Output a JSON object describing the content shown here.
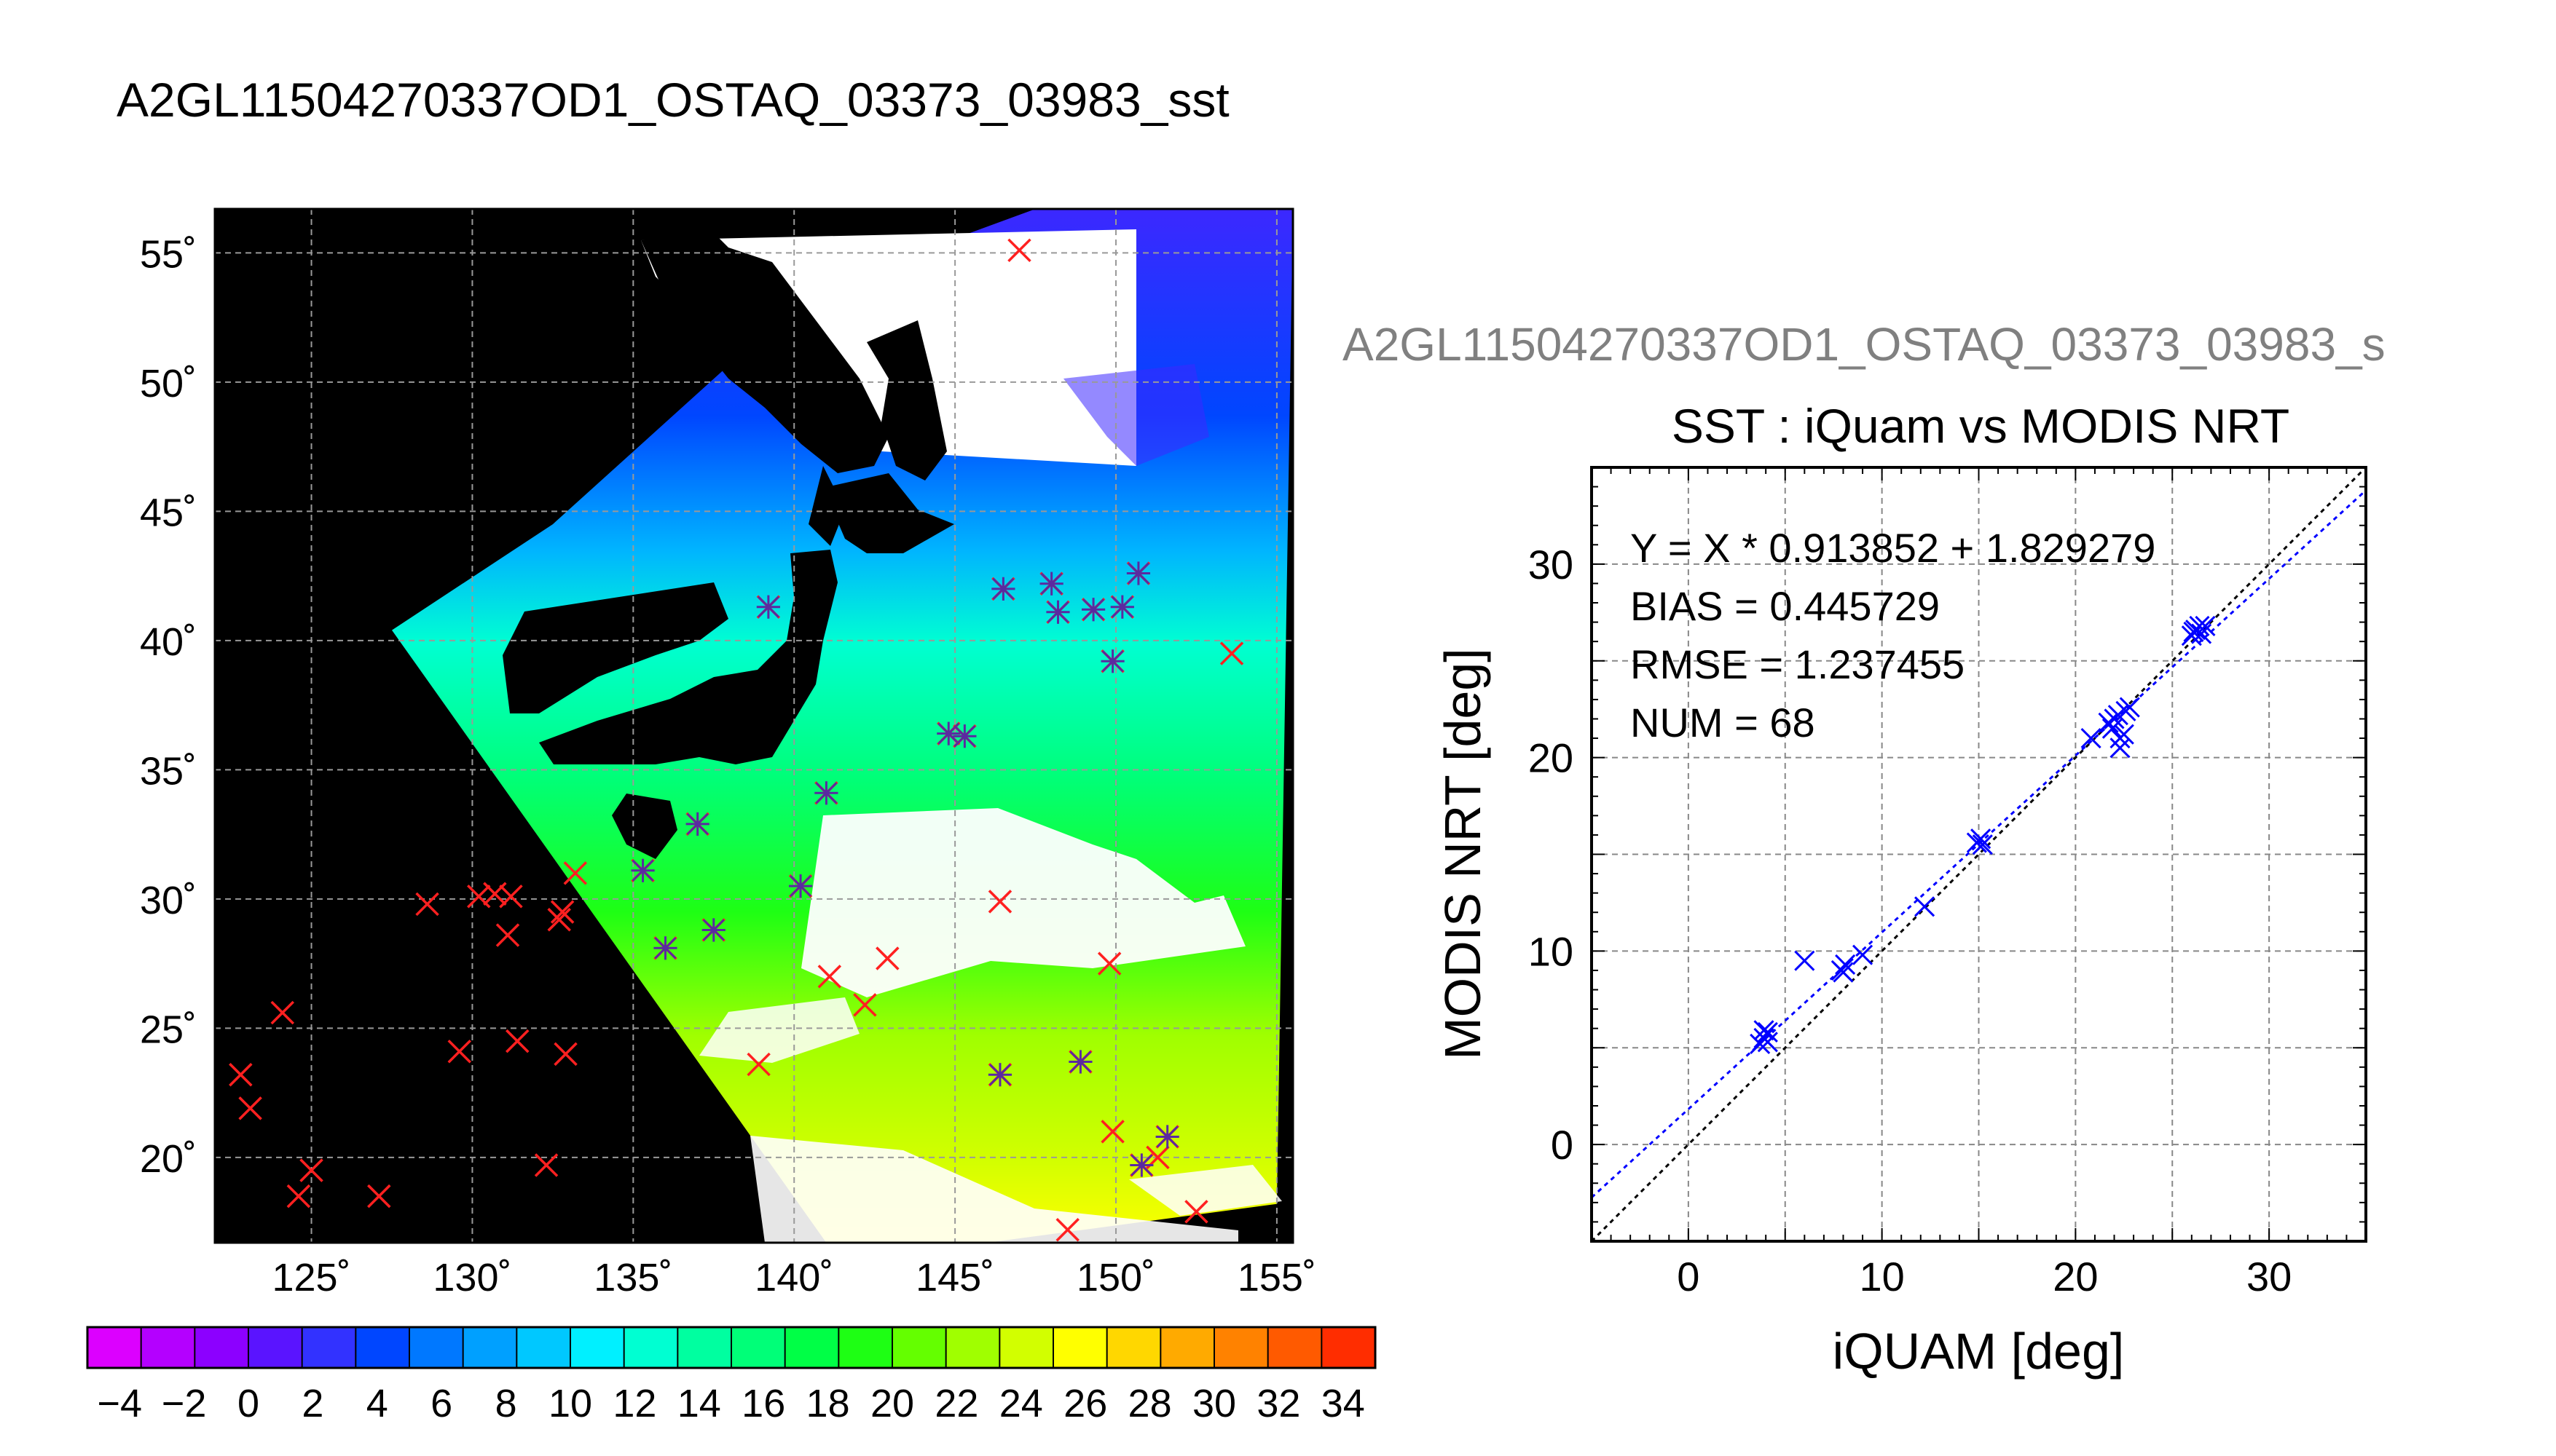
{
  "main_title": "A2GL11504270337OD1_OSTAQ_03373_03983_sst",
  "map": {
    "lon_ticks": [
      "125˚",
      "130˚",
      "135˚",
      "140˚",
      "145˚",
      "150˚",
      "155˚"
    ],
    "lat_ticks": [
      "55˚",
      "50˚",
      "45˚",
      "40˚",
      "35˚",
      "30˚",
      "25˚",
      "20˚"
    ],
    "lon_values": [
      125,
      130,
      135,
      140,
      145,
      150,
      155
    ],
    "lat_values": [
      55,
      50,
      45,
      40,
      35,
      30,
      25,
      20
    ],
    "lon_range": [
      122,
      155.5
    ],
    "lat_range": [
      16.7,
      56.7
    ],
    "swath_polygon": [
      [
        147.5,
        56.7
      ],
      [
        155.5,
        56.7
      ],
      [
        155,
        18.2
      ],
      [
        146,
        16.7
      ],
      [
        141,
        16.7
      ],
      [
        127.5,
        40.4
      ],
      [
        132.5,
        44.5
      ],
      [
        140.5,
        53.5
      ]
    ],
    "colorbar": {
      "min": -5,
      "max": 35,
      "tick_labels": [
        "−4",
        "−2",
        "0",
        "2",
        "4",
        "6",
        "8",
        "10",
        "12",
        "14",
        "16",
        "18",
        "20",
        "22",
        "24",
        "26",
        "28",
        "30",
        "32",
        "34"
      ],
      "tick_values": [
        -4,
        -2,
        0,
        2,
        4,
        6,
        8,
        10,
        12,
        14,
        16,
        18,
        20,
        22,
        24,
        26,
        28,
        30,
        32,
        34
      ],
      "colors": [
        "#dc00ff",
        "#b400ff",
        "#8c00ff",
        "#5a14ff",
        "#3232ff",
        "#0046ff",
        "#0078ff",
        "#00a0ff",
        "#00c8ff",
        "#00f0ff",
        "#00ffd2",
        "#00ffa0",
        "#00ff78",
        "#00ff46",
        "#1eff14",
        "#64ff00",
        "#a0ff00",
        "#d2ff00",
        "#ffff00",
        "#ffd700",
        "#ffaa00",
        "#ff8200",
        "#ff5a00",
        "#ff2d00"
      ]
    },
    "matched_points": [
      [
        136,
        28.1
      ],
      [
        137.5,
        28.8
      ],
      [
        135.3,
        31.1
      ],
      [
        137,
        32.9
      ],
      [
        141,
        34.1
      ],
      [
        140.2,
        30.5
      ],
      [
        144.8,
        36.4
      ],
      [
        145.3,
        36.3
      ],
      [
        139.2,
        41.3
      ],
      [
        146.5,
        42
      ],
      [
        148,
        42.2
      ],
      [
        148.2,
        41.1
      ],
      [
        149.3,
        41.2
      ],
      [
        150.2,
        41.3
      ],
      [
        150.7,
        42.6
      ],
      [
        149.9,
        39.2
      ],
      [
        146.4,
        23.2
      ],
      [
        148.9,
        23.7
      ],
      [
        151.6,
        20.8
      ],
      [
        150.8,
        19.7
      ]
    ],
    "unmatched_points": [
      [
        147,
        55.1
      ],
      [
        153.6,
        39.5
      ],
      [
        122.8,
        23.2
      ],
      [
        123.1,
        21.9
      ],
      [
        124.1,
        25.6
      ],
      [
        124.6,
        18.5
      ],
      [
        125,
        19.5
      ],
      [
        127.1,
        18.5
      ],
      [
        128.6,
        29.8
      ],
      [
        129.6,
        24.1
      ],
      [
        130.2,
        30.1
      ],
      [
        130.7,
        30.2
      ],
      [
        131.2,
        30.1
      ],
      [
        131.1,
        28.6
      ],
      [
        131.4,
        24.5
      ],
      [
        132.3,
        19.7
      ],
      [
        132.7,
        29.2
      ],
      [
        132.8,
        29.5
      ],
      [
        133.2,
        31
      ],
      [
        132.9,
        24
      ],
      [
        138.9,
        23.6
      ],
      [
        141.1,
        27
      ],
      [
        142.2,
        25.9
      ],
      [
        142.9,
        27.7
      ],
      [
        146.4,
        29.9
      ],
      [
        148.5,
        17.2
      ],
      [
        149.8,
        27.5
      ],
      [
        149.9,
        21
      ],
      [
        151.3,
        20
      ],
      [
        152.5,
        17.9
      ]
    ]
  },
  "scatter_title": "A2GL11504270337OD1_OSTAQ_03373_03983_s",
  "chart_data": {
    "type": "scatter",
    "title": "SST : iQuam vs MODIS NRT",
    "xlabel": "iQUAM [deg]",
    "ylabel": "MODIS NRT [deg]",
    "xlim": [
      -5,
      35
    ],
    "ylim": [
      -5,
      35
    ],
    "xticks": [
      0,
      10,
      20,
      30
    ],
    "yticks": [
      0,
      10,
      20,
      30
    ],
    "grid": true,
    "stats": {
      "fit": "Y = X * 0.913852 + 1.829279",
      "bias": "BIAS = 0.445729",
      "rmse": "RMSE = 1.237455",
      "num": "NUM = 68"
    },
    "fit_line": {
      "slope": 0.913852,
      "intercept": 1.829279,
      "color": "#0000ff"
    },
    "identity_line": {
      "slope": 1,
      "intercept": 0,
      "color": "#000000"
    },
    "marker_color": "#0000ff",
    "points": [
      [
        3.7,
        5.2
      ],
      [
        3.9,
        5.5
      ],
      [
        4.1,
        5.8
      ],
      [
        3.9,
        5.9
      ],
      [
        4.1,
        5.3
      ],
      [
        6,
        9.5
      ],
      [
        7.9,
        9
      ],
      [
        8.1,
        9.3
      ],
      [
        8,
        8.9
      ],
      [
        9,
        9.8
      ],
      [
        12.2,
        12.3
      ],
      [
        14.9,
        15.6
      ],
      [
        15.1,
        15.8
      ],
      [
        15.2,
        15.5
      ],
      [
        20.8,
        21
      ],
      [
        21.7,
        21.8
      ],
      [
        21.9,
        21.5
      ],
      [
        22,
        22
      ],
      [
        22.3,
        20.5
      ],
      [
        22.3,
        21
      ],
      [
        22.5,
        21.2
      ],
      [
        22.6,
        22.4
      ],
      [
        22.8,
        22.6
      ],
      [
        22.2,
        22.2
      ],
      [
        26,
        26.3
      ],
      [
        26.2,
        26.6
      ],
      [
        26.4,
        26.8
      ],
      [
        26.5,
        26.4
      ],
      [
        26.7,
        26.8
      ],
      [
        26.1,
        26.5
      ]
    ]
  }
}
